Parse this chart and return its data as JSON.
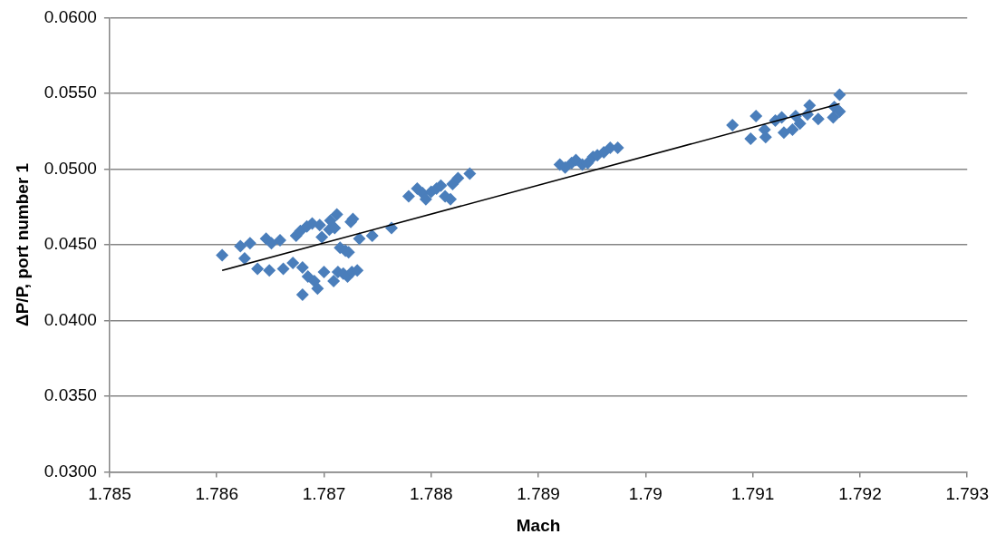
{
  "chart_data": {
    "type": "scatter",
    "xlabel": "Mach",
    "ylabel": "ΔP/P, port number 1",
    "xlim": [
      1.785,
      1.793
    ],
    "xticks": [
      1.785,
      1.786,
      1.787,
      1.788,
      1.789,
      1.79,
      1.791,
      1.792,
      1.793
    ],
    "ylim": [
      0.03,
      0.06
    ],
    "yticks": [
      {
        "value": 0.03,
        "label": "0.0300"
      },
      {
        "value": 0.035,
        "label": "0.0350"
      },
      {
        "value": 0.04,
        "label": "0.0400"
      },
      {
        "value": 0.045,
        "label": "0.0450"
      },
      {
        "value": 0.05,
        "label": "0.0500"
      },
      {
        "value": 0.055,
        "label": "0.0550"
      },
      {
        "value": 0.06,
        "label": "0.0600"
      }
    ],
    "grid": "y",
    "legend": false,
    "series": [
      {
        "type": "scatter",
        "marker": "diamond",
        "color": "#4a7ebb",
        "x": [
          1.78605,
          1.78622,
          1.78631,
          1.78626,
          1.78638,
          1.78646,
          1.78651,
          1.78649,
          1.78659,
          1.78662,
          1.78671,
          1.78674,
          1.78678,
          1.7868,
          1.78684,
          1.78685,
          1.78689,
          1.78691,
          1.78694,
          1.7868,
          1.78696,
          1.78698,
          1.787,
          1.78705,
          1.78706,
          1.78709,
          1.7871,
          1.78713,
          1.78718,
          1.78722,
          1.78726,
          1.78731,
          1.78712,
          1.78715,
          1.7872,
          1.78725,
          1.78727,
          1.78723,
          1.78733,
          1.78745,
          1.78763,
          1.78779,
          1.78787,
          1.78792,
          1.78795,
          1.788,
          1.78805,
          1.78809,
          1.78813,
          1.78818,
          1.7882,
          1.78825,
          1.78836,
          1.7892,
          1.78925,
          1.78931,
          1.78935,
          1.78941,
          1.78946,
          1.78951,
          1.78955,
          1.78961,
          1.78967,
          1.78974,
          1.79081,
          1.79103,
          1.79098,
          1.79112,
          1.79111,
          1.79121,
          1.79127,
          1.79129,
          1.79137,
          1.7914,
          1.79144,
          1.79153,
          1.79151,
          1.79161,
          1.79175,
          1.79176,
          1.79181,
          1.79181
        ],
        "values": [
          0.0443,
          0.0449,
          0.0451,
          0.0441,
          0.0434,
          0.0454,
          0.0451,
          0.0433,
          0.0453,
          0.0434,
          0.0438,
          0.0456,
          0.0459,
          0.0435,
          0.0462,
          0.0429,
          0.0464,
          0.0426,
          0.0421,
          0.0417,
          0.0463,
          0.0455,
          0.0432,
          0.046,
          0.0466,
          0.0426,
          0.0461,
          0.0432,
          0.0431,
          0.0429,
          0.0432,
          0.0433,
          0.047,
          0.0448,
          0.0446,
          0.0465,
          0.0467,
          0.0445,
          0.0454,
          0.0456,
          0.0461,
          0.0482,
          0.0487,
          0.0484,
          0.048,
          0.0485,
          0.0487,
          0.0489,
          0.0482,
          0.048,
          0.049,
          0.0494,
          0.0497,
          0.0503,
          0.0501,
          0.0504,
          0.0506,
          0.0503,
          0.0504,
          0.0508,
          0.0509,
          0.0511,
          0.0514,
          0.0514,
          0.0529,
          0.0535,
          0.052,
          0.0521,
          0.0526,
          0.0532,
          0.0534,
          0.0524,
          0.0526,
          0.0535,
          0.053,
          0.0542,
          0.0536,
          0.0533,
          0.0534,
          0.0541,
          0.0549,
          0.0538
        ]
      },
      {
        "type": "line",
        "marker": "none",
        "line_style": "solid",
        "color": "#000000",
        "x": [
          1.78605,
          1.79181
        ],
        "values": [
          0.0433,
          0.0543
        ]
      }
    ]
  }
}
